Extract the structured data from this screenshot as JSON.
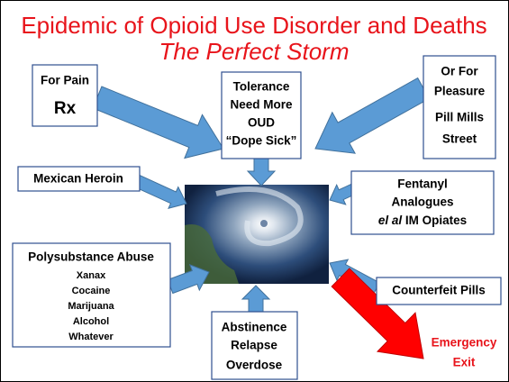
{
  "title": "Epidemic of Opioid Use Disorder and Deaths",
  "subtitle": "The Perfect Storm",
  "boxes": {
    "pain": [
      "For Pain",
      "Rx"
    ],
    "tolerance": [
      "Tolerance",
      "Need More",
      "OUD",
      "“Dope Sick”"
    ],
    "pleasure": [
      "Or For",
      "Pleasure",
      "Pill Mills",
      "Street"
    ],
    "heroin": "Mexican Heroin",
    "fentanyl": {
      "lines": [
        "Fentanyl",
        "Analogues"
      ],
      "italic": "el al",
      "rest": "IM Opiates"
    },
    "polysubstance": {
      "heading": "Polysubstance Abuse",
      "items": [
        "Xanax",
        "Cocaine",
        "Marijuana",
        "Alcohol",
        "Whatever"
      ]
    },
    "counterfeit": "Counterfeit Pills",
    "abstinence": [
      "Abstinence",
      "Relapse",
      "Overdose"
    ]
  },
  "exit": [
    "Emergency",
    "Exit"
  ]
}
